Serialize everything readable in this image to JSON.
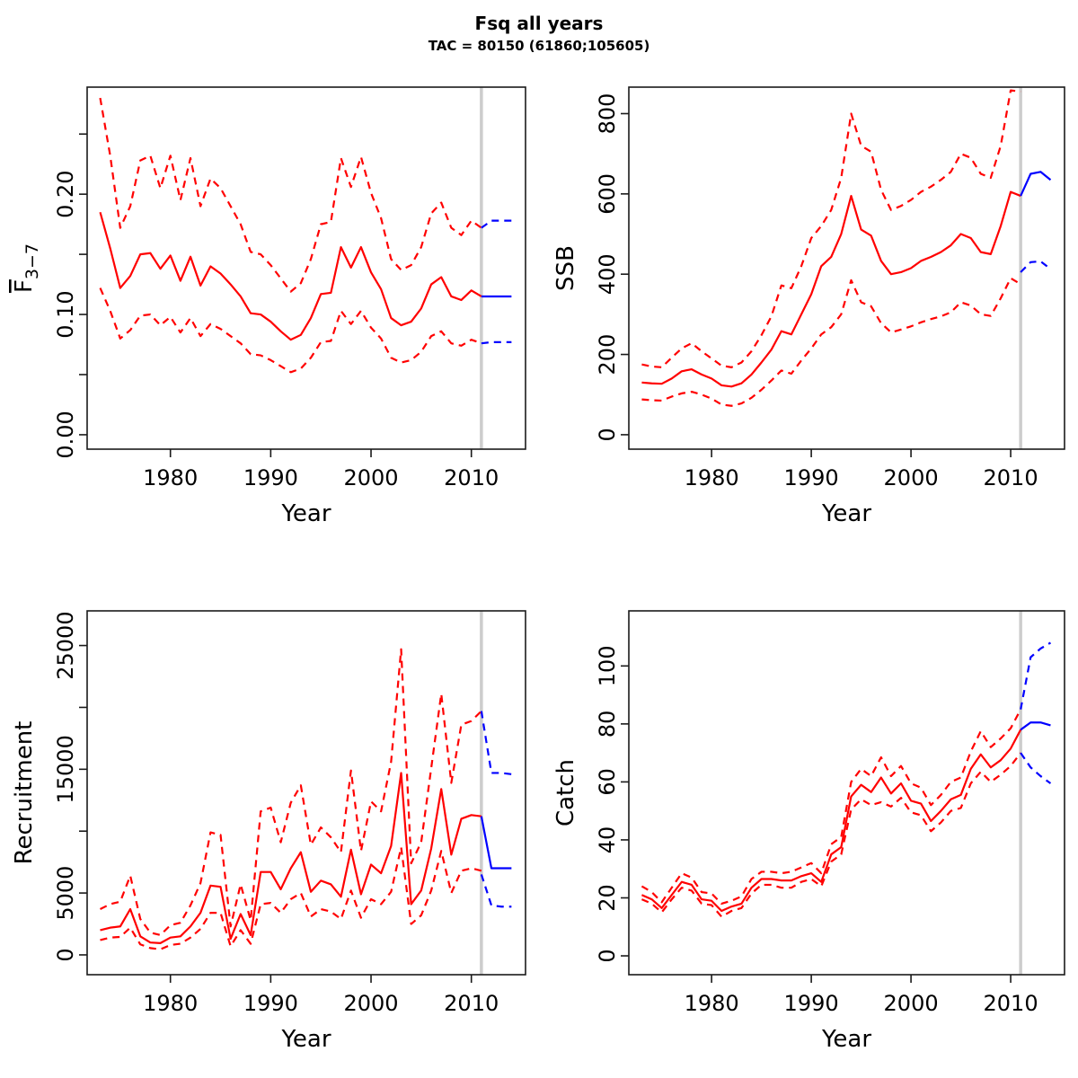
{
  "header": {
    "title": "Fsq all years",
    "subtitle": "TAC = 80150 (61860;105605)"
  },
  "colors": {
    "history": "#ff0000",
    "forecast": "#0000ff",
    "divider": "#cdcdcd",
    "axis": "#1a1a1a"
  },
  "chart_data": [
    {
      "id": "fbar",
      "type": "line",
      "xlabel": "Year",
      "ylabel": "F3-7",
      "ylabel_base": "F",
      "ylabel_sub": "3−7",
      "grid": false,
      "legend": null,
      "xlim": [
        1971.7,
        2015.4
      ],
      "ylim": [
        -0.012,
        0.289
      ],
      "xticks": [
        1980,
        1990,
        2000,
        2010
      ],
      "ytick_values": [
        0,
        0.05,
        0.1,
        0.15,
        0.2,
        0.25
      ],
      "ytick_labels": [
        "0.00",
        "",
        "0.10",
        "",
        "0.20",
        ""
      ],
      "divider_year": 2011,
      "years": [
        1973,
        1974,
        1975,
        1976,
        1977,
        1978,
        1979,
        1980,
        1981,
        1982,
        1983,
        1984,
        1985,
        1986,
        1987,
        1988,
        1989,
        1990,
        1991,
        1992,
        1993,
        1994,
        1995,
        1996,
        1997,
        1998,
        1999,
        2000,
        2001,
        2002,
        2003,
        2004,
        2005,
        2006,
        2007,
        2008,
        2009,
        2010,
        2011
      ],
      "series": [
        {
          "name": "median",
          "style": "solid",
          "values": [
            0.185,
            0.155,
            0.122,
            0.132,
            0.15,
            0.151,
            0.138,
            0.149,
            0.128,
            0.148,
            0.124,
            0.14,
            0.134,
            0.125,
            0.115,
            0.101,
            0.1,
            0.094,
            0.086,
            0.079,
            0.083,
            0.097,
            0.117,
            0.118,
            0.156,
            0.139,
            0.156,
            0.135,
            0.121,
            0.097,
            0.091,
            0.094,
            0.105,
            0.125,
            0.131,
            0.115,
            0.112,
            0.12,
            0.115
          ]
        },
        {
          "name": "lower-ci",
          "style": "dashed",
          "values": [
            0.122,
            0.103,
            0.08,
            0.087,
            0.099,
            0.1,
            0.091,
            0.098,
            0.085,
            0.097,
            0.082,
            0.092,
            0.088,
            0.082,
            0.076,
            0.067,
            0.066,
            0.062,
            0.057,
            0.052,
            0.055,
            0.064,
            0.077,
            0.078,
            0.103,
            0.092,
            0.103,
            0.089,
            0.08,
            0.064,
            0.06,
            0.062,
            0.069,
            0.082,
            0.086,
            0.076,
            0.074,
            0.079,
            0.076
          ]
        },
        {
          "name": "upper-ci",
          "style": "dashed",
          "values": [
            0.28,
            0.232,
            0.172,
            0.19,
            0.228,
            0.232,
            0.205,
            0.232,
            0.195,
            0.23,
            0.19,
            0.213,
            0.205,
            0.19,
            0.175,
            0.152,
            0.15,
            0.141,
            0.13,
            0.119,
            0.126,
            0.146,
            0.175,
            0.177,
            0.23,
            0.206,
            0.231,
            0.201,
            0.18,
            0.146,
            0.137,
            0.141,
            0.156,
            0.184,
            0.193,
            0.172,
            0.166,
            0.178,
            0.172
          ]
        }
      ],
      "forecast_years": [
        2011,
        2012,
        2013,
        2014
      ],
      "forecast_series": [
        {
          "name": "median",
          "style": "solid",
          "values": [
            0.115,
            0.115,
            0.115,
            0.115
          ]
        },
        {
          "name": "lower-ci",
          "style": "dashed",
          "values": [
            0.076,
            0.077,
            0.077,
            0.077
          ]
        },
        {
          "name": "upper-ci",
          "style": "dashed",
          "values": [
            0.172,
            0.178,
            0.178,
            0.178
          ]
        }
      ]
    },
    {
      "id": "ssb",
      "type": "line",
      "xlabel": "Year",
      "ylabel": "SSB",
      "grid": false,
      "legend": null,
      "xlim": [
        1971.7,
        2015.4
      ],
      "ylim": [
        -36,
        866
      ],
      "xticks": [
        1980,
        1990,
        2000,
        2010
      ],
      "ytick_values": [
        0,
        200,
        400,
        600,
        800
      ],
      "ytick_labels": [
        "0",
        "200",
        "400",
        "600",
        "800"
      ],
      "divider_year": 2011,
      "years": [
        1973,
        1974,
        1975,
        1976,
        1977,
        1978,
        1979,
        1980,
        1981,
        1982,
        1983,
        1984,
        1985,
        1986,
        1987,
        1988,
        1989,
        1990,
        1991,
        1992,
        1993,
        1994,
        1995,
        1996,
        1997,
        1998,
        1999,
        2000,
        2001,
        2002,
        2003,
        2004,
        2005,
        2006,
        2007,
        2008,
        2009,
        2010,
        2011
      ],
      "series": [
        {
          "name": "median",
          "style": "solid",
          "values": [
            130,
            128,
            127,
            140,
            158,
            163,
            150,
            140,
            123,
            120,
            128,
            150,
            180,
            212,
            258,
            250,
            300,
            350,
            420,
            443,
            500,
            595,
            511,
            496,
            433,
            400,
            405,
            415,
            433,
            443,
            455,
            472,
            500,
            490,
            455,
            450,
            520,
            605,
            595
          ]
        },
        {
          "name": "lower-ci",
          "style": "dashed",
          "values": [
            88,
            86,
            85,
            95,
            103,
            107,
            100,
            90,
            75,
            72,
            78,
            92,
            112,
            135,
            160,
            152,
            185,
            215,
            250,
            268,
            300,
            385,
            330,
            320,
            278,
            255,
            262,
            270,
            280,
            288,
            295,
            305,
            330,
            322,
            300,
            296,
            340,
            390,
            375
          ]
        },
        {
          "name": "upper-ci",
          "style": "dashed",
          "values": [
            175,
            170,
            168,
            192,
            215,
            228,
            208,
            190,
            172,
            168,
            180,
            208,
            248,
            295,
            372,
            365,
            420,
            490,
            520,
            560,
            640,
            800,
            720,
            705,
            610,
            560,
            570,
            585,
            605,
            618,
            635,
            655,
            700,
            690,
            650,
            640,
            720,
            858,
            855
          ]
        }
      ],
      "forecast_years": [
        2011,
        2012,
        2013,
        2014
      ],
      "forecast_series": [
        {
          "name": "median",
          "style": "solid",
          "values": [
            595,
            650,
            655,
            635
          ]
        },
        {
          "name": "lower-ci",
          "style": "dashed",
          "values": [
            405,
            430,
            432,
            413
          ]
        }
      ]
    },
    {
      "id": "recruitment",
      "type": "line",
      "xlabel": "Year",
      "ylabel": "Recruitment",
      "grid": false,
      "legend": null,
      "xlim": [
        1971.7,
        2015.4
      ],
      "ylim": [
        -1600,
        27800
      ],
      "xticks": [
        1980,
        1990,
        2000,
        2010
      ],
      "ytick_values": [
        0,
        5000,
        10000,
        15000,
        20000,
        25000
      ],
      "ytick_labels": [
        "0",
        "5000",
        "",
        "15000",
        "",
        "25000"
      ],
      "divider_year": 2011,
      "years": [
        1973,
        1974,
        1975,
        1976,
        1977,
        1978,
        1979,
        1980,
        1981,
        1982,
        1983,
        1984,
        1985,
        1986,
        1987,
        1988,
        1989,
        1990,
        1991,
        1992,
        1993,
        1994,
        1995,
        1996,
        1997,
        1998,
        1999,
        2000,
        2001,
        2002,
        2003,
        2004,
        2005,
        2006,
        2007,
        2008,
        2009,
        2010,
        2011
      ],
      "series": [
        {
          "name": "median",
          "style": "solid",
          "values": [
            2000,
            2200,
            2300,
            3700,
            1500,
            1000,
            950,
            1400,
            1500,
            2300,
            3400,
            5600,
            5500,
            1300,
            3300,
            1600,
            6700,
            6700,
            5300,
            7000,
            8300,
            5100,
            6000,
            5700,
            4700,
            8500,
            4900,
            7300,
            6600,
            8800,
            14700,
            4100,
            5200,
            8600,
            13400,
            8100,
            11000,
            11300,
            11200
          ]
        },
        {
          "name": "lower-ci",
          "style": "dashed",
          "values": [
            1200,
            1400,
            1450,
            2200,
            850,
            550,
            450,
            800,
            900,
            1400,
            2100,
            3400,
            3400,
            700,
            2000,
            900,
            4100,
            4200,
            3400,
            4500,
            5000,
            3100,
            3700,
            3500,
            2900,
            5200,
            3000,
            4500,
            4100,
            5100,
            8700,
            2500,
            3200,
            5200,
            8400,
            5000,
            6800,
            7000,
            6800
          ]
        },
        {
          "name": "upper-ci",
          "style": "dashed",
          "values": [
            3700,
            4100,
            4300,
            6400,
            2900,
            1800,
            1600,
            2400,
            2600,
            4000,
            5800,
            9900,
            9700,
            2300,
            5700,
            2800,
            11600,
            11900,
            9100,
            12300,
            13700,
            8900,
            10300,
            9500,
            8300,
            14900,
            8400,
            12400,
            11600,
            15600,
            24700,
            7400,
            9100,
            15100,
            21100,
            13900,
            18600,
            18900,
            19700
          ]
        }
      ],
      "forecast_years": [
        2011,
        2012,
        2013,
        2014
      ],
      "forecast_series": [
        {
          "name": "median",
          "style": "solid",
          "values": [
            11200,
            7000,
            7000,
            7000
          ]
        },
        {
          "name": "lower-ci",
          "style": "dashed",
          "values": [
            6500,
            4000,
            3900,
            3900
          ]
        },
        {
          "name": "upper-ci",
          "style": "dashed",
          "values": [
            19700,
            14700,
            14700,
            14600
          ]
        }
      ]
    },
    {
      "id": "catch",
      "type": "line",
      "xlabel": "Year",
      "ylabel": "Catch",
      "grid": false,
      "legend": null,
      "xlim": [
        1971.7,
        2015.4
      ],
      "ylim": [
        -6.5,
        119
      ],
      "xticks": [
        1980,
        1990,
        2000,
        2010
      ],
      "ytick_values": [
        0,
        20,
        40,
        60,
        80,
        100
      ],
      "ytick_labels": [
        "0",
        "20",
        "40",
        "60",
        "80",
        "100"
      ],
      "divider_year": 2011,
      "years": [
        1973,
        1974,
        1975,
        1976,
        1977,
        1978,
        1979,
        1980,
        1981,
        1982,
        1983,
        1984,
        1985,
        1986,
        1987,
        1988,
        1989,
        1990,
        1991,
        1992,
        1993,
        1994,
        1995,
        1996,
        1997,
        1998,
        1999,
        2000,
        2001,
        2002,
        2003,
        2004,
        2005,
        2006,
        2007,
        2008,
        2009,
        2010,
        2011
      ],
      "series": [
        {
          "name": "median",
          "style": "solid",
          "values": [
            21,
            19.5,
            16.5,
            21,
            25.5,
            24.5,
            19.5,
            19,
            15.5,
            17,
            18,
            23.5,
            26.5,
            26.5,
            26,
            26,
            27.5,
            28.5,
            25.5,
            35,
            37.5,
            55,
            59,
            56.5,
            61.5,
            56,
            59.5,
            53.5,
            52.5,
            46.5,
            50,
            54,
            55.5,
            64.5,
            69.5,
            65,
            67.5,
            71.5,
            78
          ]
        },
        {
          "name": "lower-ci",
          "style": "dashed",
          "values": [
            19.5,
            18,
            15,
            19.5,
            23.5,
            22.5,
            18,
            17.5,
            13.5,
            15.5,
            16.5,
            21.5,
            24.5,
            24.5,
            23.5,
            23.5,
            25.5,
            26.5,
            24,
            32.5,
            35,
            50.5,
            54,
            52,
            53,
            51.5,
            54.5,
            49.5,
            48.5,
            43,
            46,
            50,
            51,
            59.5,
            63.5,
            60,
            62.5,
            65.5,
            70
          ]
        },
        {
          "name": "upper-ci",
          "style": "dashed",
          "values": [
            24,
            22,
            18.5,
            23.5,
            28.5,
            27,
            22,
            21.5,
            18,
            19,
            20.5,
            26.5,
            29,
            29,
            28.5,
            29,
            30.5,
            32,
            28.5,
            38.5,
            41,
            60,
            64.5,
            62,
            68.5,
            62,
            65.5,
            59.5,
            58,
            52,
            55.5,
            60,
            61.5,
            70.5,
            77.5,
            72,
            75,
            78.5,
            85
          ]
        }
      ],
      "forecast_years": [
        2011,
        2012,
        2013,
        2014
      ],
      "forecast_series": [
        {
          "name": "median",
          "style": "solid",
          "values": [
            78,
            80.5,
            80.5,
            79.5
          ]
        },
        {
          "name": "lower-ci",
          "style": "dashed",
          "values": [
            70,
            65,
            62,
            59.5
          ]
        },
        {
          "name": "upper-ci",
          "style": "dashed",
          "values": [
            85,
            103,
            106,
            108
          ]
        }
      ]
    }
  ]
}
